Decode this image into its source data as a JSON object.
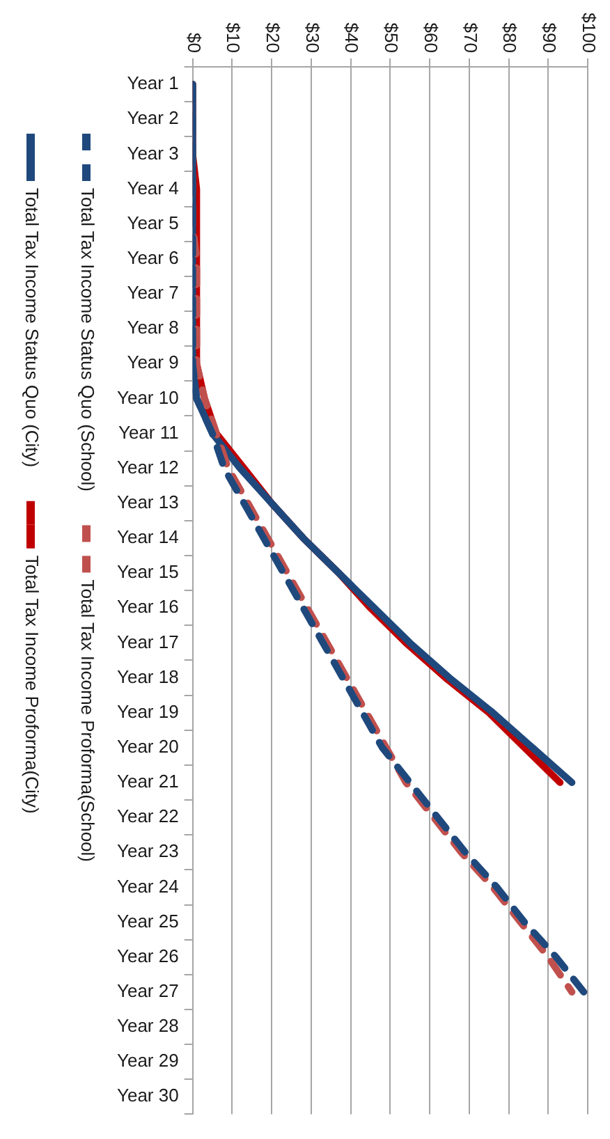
{
  "chart_data": {
    "type": "line",
    "orientation": "horizontal",
    "categories": [
      "Year 1",
      "Year 2",
      "Year 3",
      "Year 4",
      "Year 5",
      "Year 6",
      "Year 7",
      "Year 8",
      "Year 9",
      "Year 10",
      "Year 11",
      "Year 12",
      "Year 13",
      "Year 14",
      "Year 15",
      "Year 16",
      "Year 17",
      "Year 18",
      "Year 19",
      "Year 20",
      "Year 21",
      "Year 22",
      "Year 23",
      "Year 24",
      "Year 25",
      "Year 26",
      "Year 27",
      "Year 28",
      "Year 29",
      "Year 30"
    ],
    "series": [
      {
        "name": "Total Tax Income Status Quo (School)",
        "color": "#1f497d",
        "line_style": "dashed",
        "values": [
          0,
          0,
          0,
          0,
          0,
          0,
          0,
          0,
          0,
          1,
          5,
          8,
          13,
          18,
          23,
          28,
          33,
          38,
          43,
          48,
          55,
          62,
          69,
          77,
          84,
          92,
          99,
          null,
          null,
          null
        ]
      },
      {
        "name": "Total Tax Income Proforma(School)",
        "color": "#c0504d",
        "line_style": "dashed",
        "values": [
          0,
          0,
          0,
          0,
          0,
          1,
          1,
          1,
          1,
          3,
          6,
          9,
          14,
          19,
          24,
          29,
          34,
          39,
          44,
          49,
          54,
          61,
          68,
          76,
          83,
          90,
          96,
          null,
          null,
          null
        ]
      },
      {
        "name": "Total Tax Income Status Quo (City)",
        "color": "#1f497d",
        "line_style": "solid",
        "values": [
          0,
          0,
          0,
          0,
          0,
          0,
          0,
          0,
          0,
          1,
          5,
          12,
          20,
          28,
          37,
          46,
          55,
          65,
          76,
          86,
          96,
          null,
          null,
          null,
          null,
          null,
          null,
          null,
          null,
          null
        ]
      },
      {
        "name": "Total Tax Income Proforma(City)",
        "color": "#c00000",
        "line_style": "solid",
        "values": [
          0,
          0,
          0,
          1,
          1,
          1,
          1,
          1,
          1,
          3,
          6,
          13,
          20,
          28,
          37,
          45,
          54,
          64,
          75,
          84,
          93,
          null,
          null,
          null,
          null,
          null,
          null,
          null,
          null,
          null
        ]
      }
    ],
    "xlim": [
      0,
      100
    ],
    "xticks": [
      {
        "value": 0,
        "label": "$0"
      },
      {
        "value": 10,
        "label": "$10"
      },
      {
        "value": 20,
        "label": "$20"
      },
      {
        "value": 30,
        "label": "$30"
      },
      {
        "value": 40,
        "label": "$40"
      },
      {
        "value": 50,
        "label": "$50"
      },
      {
        "value": 60,
        "label": "$60"
      },
      {
        "value": 70,
        "label": "$70"
      },
      {
        "value": 80,
        "label": "$80"
      },
      {
        "value": 90,
        "label": "$90"
      },
      {
        "value": 100,
        "label": "$100"
      }
    ],
    "grid": "x",
    "legend": "left",
    "marker": "none"
  }
}
